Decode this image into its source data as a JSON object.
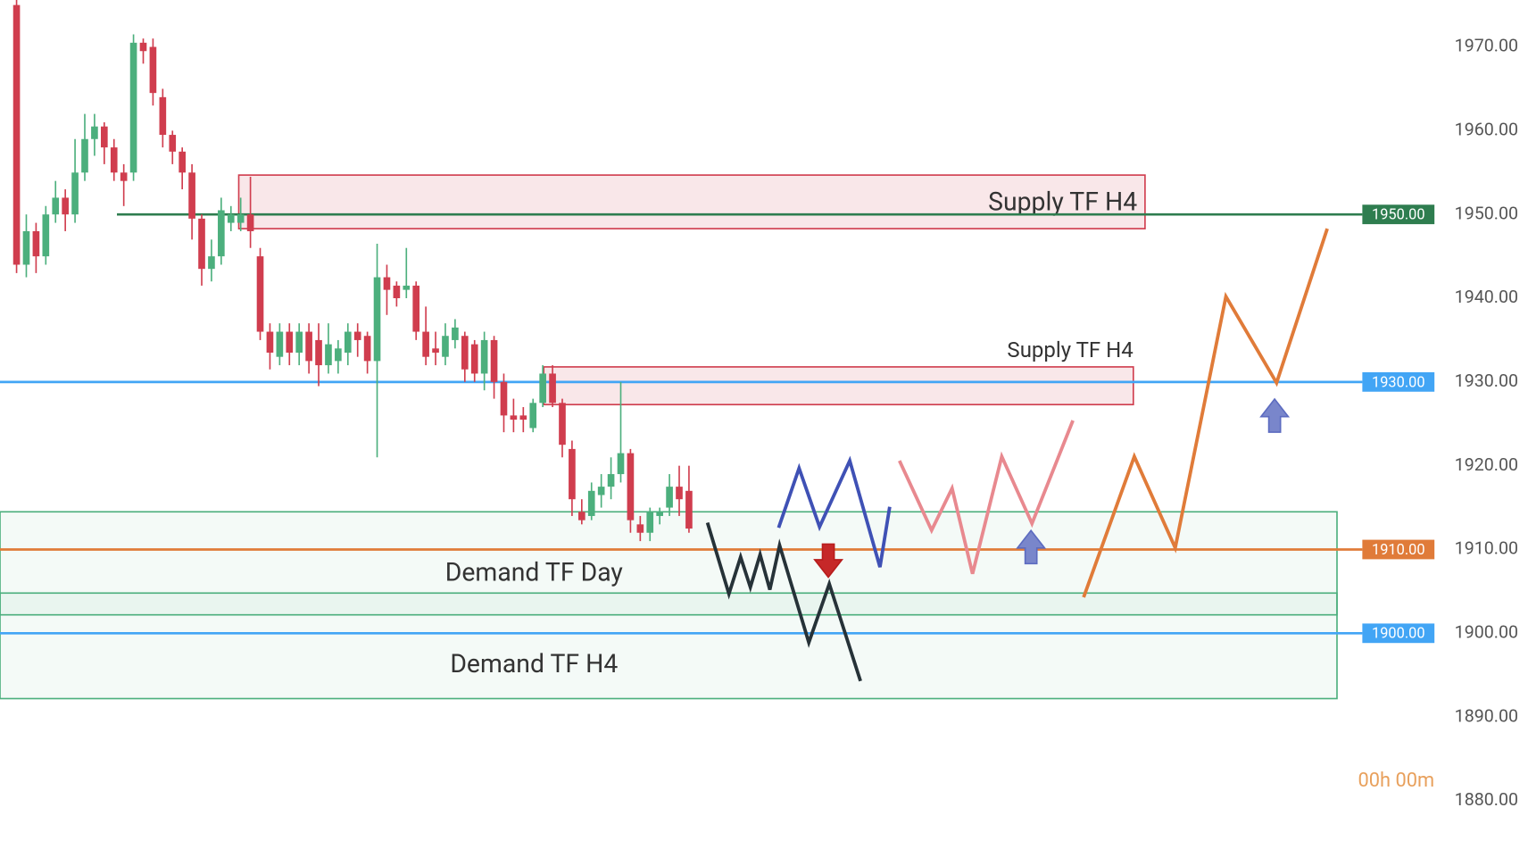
{
  "chart_data": {
    "type": "candlestick",
    "up_color": "#4caf7d",
    "down_color": "#d03d4e",
    "ylim": [
      1875.2,
      1975.6
    ],
    "yticks": [
      {
        "value": 1880,
        "label": "1880.00"
      },
      {
        "value": 1890,
        "label": "1890.00"
      },
      {
        "value": 1900,
        "label": "1900.00"
      },
      {
        "value": 1910,
        "label": "1910.00"
      },
      {
        "value": 1920,
        "label": "1920.00"
      },
      {
        "value": 1930,
        "label": "1930.00"
      },
      {
        "value": 1940,
        "label": "1940.00"
      },
      {
        "value": 1950,
        "label": "1950.00"
      },
      {
        "value": 1960,
        "label": "1960.00"
      },
      {
        "value": 1970,
        "label": "1970.00"
      }
    ],
    "open": [
      1975,
      1944,
      1948,
      1945,
      1950,
      1952,
      1950,
      1955,
      1959,
      1960.5,
      1958,
      1955,
      1955,
      1970.5,
      1970,
      1964,
      1959.5,
      1957.5,
      1955,
      1949.5,
      1943.5,
      1945,
      1949,
      1949,
      1950,
      1945,
      1936,
      1933,
      1936,
      1933.5,
      1936,
      1935,
      1932,
      1932.5,
      1933.5,
      1936,
      1935.5,
      1932.5,
      1942.5,
      1941.5,
      1941,
      1941.5,
      1936,
      1934,
      1933,
      1935,
      1935.5,
      1934.5,
      1931,
      1935,
      1930,
      1926,
      1926,
      1924.5,
      1927.5,
      1931,
      1927.5,
      1922,
      1914.5,
      1914,
      1916.5,
      1917.5,
      1919,
      1921.5,
      1913,
      1912,
      1914,
      1915,
      1917.5,
      1917
    ],
    "high": [
      1976,
      1950,
      1949,
      1951,
      1954,
      1953,
      1959,
      1962,
      1962,
      1961,
      1959,
      1956,
      1971.5,
      1971,
      1971,
      1965,
      1960,
      1958,
      1956,
      1950,
      1947,
      1952,
      1951,
      1952,
      1954.5,
      1946,
      1937,
      1937,
      1937,
      1937,
      1937,
      1937,
      1937,
      1935,
      1937,
      1937,
      1936,
      1946.5,
      1944,
      1942,
      1946,
      1942,
      1939,
      1936,
      1937,
      1937.5,
      1936,
      1935,
      1936,
      1935.5,
      1931,
      1928,
      1927,
      1928,
      1932,
      1932,
      1928,
      1923,
      1916,
      1918,
      1919,
      1921,
      1930,
      1922,
      1914,
      1915,
      1915,
      1919,
      1920,
      1920
    ],
    "low": [
      1943,
      1942.5,
      1943,
      1944,
      1949,
      1948,
      1949,
      1954,
      1957,
      1956,
      1954,
      1951,
      1954,
      1968,
      1963,
      1958,
      1956,
      1953,
      1947,
      1941.5,
      1942,
      1944,
      1948,
      1948,
      1946,
      1935,
      1931.5,
      1932,
      1932,
      1932,
      1931,
      1929.5,
      1931,
      1931,
      1932,
      1933,
      1931,
      1921,
      1938,
      1939,
      1940,
      1935,
      1932,
      1932,
      1932,
      1934,
      1930,
      1930,
      1929,
      1928,
      1924,
      1924,
      1924,
      1924,
      1927,
      1927,
      1921,
      1914,
      1913,
      1913.5,
      1915,
      1916,
      1918,
      1912,
      1911,
      1911,
      1913,
      1914,
      1914,
      1912
    ],
    "close": [
      1944,
      1948,
      1945,
      1950,
      1952,
      1950,
      1955,
      1959,
      1960.5,
      1958,
      1955,
      1954,
      1970.5,
      1969.5,
      1964.5,
      1959.5,
      1957.5,
      1955,
      1949.5,
      1943.5,
      1945,
      1950.5,
      1950,
      1950,
      1948,
      1936,
      1933.5,
      1936,
      1933.5,
      1936,
      1932.5,
      1932,
      1934.5,
      1934,
      1936,
      1935,
      1932.5,
      1942.5,
      1941,
      1940,
      1941.5,
      1936,
      1933,
      1933.5,
      1935.5,
      1936.5,
      1931.5,
      1931,
      1935,
      1930,
      1926,
      1925.5,
      1925.5,
      1927.5,
      1931,
      1927.5,
      1922.5,
      1916,
      1913.5,
      1917,
      1917.5,
      1919,
      1921.5,
      1913.5,
      1912,
      1914.5,
      1914.5,
      1917.5,
      1916,
      1912.5
    ],
    "levels": [
      {
        "value": 1950,
        "label": "1950.00",
        "color": "#2e7d4f"
      },
      {
        "value": 1930,
        "label": "1930.00",
        "color": "#42a5f5"
      },
      {
        "value": 1910,
        "label": "1910.00",
        "color": "#e07b39"
      },
      {
        "value": 1900,
        "label": "1900.00",
        "color": "#42a5f5"
      }
    ],
    "zones": [
      {
        "label": "Supply TF H4",
        "top": 1954.7,
        "bottom": 1948.3,
        "color": "#d03d4e"
      },
      {
        "label": "Supply TF H4",
        "top": 1931.8,
        "bottom": 1927.3,
        "color": "#d03d4e"
      },
      {
        "label": "Demand TF Day",
        "top": 1914.5,
        "bottom": 1902.2,
        "color": "#4caf7d"
      },
      {
        "label": "Demand TF H4",
        "top": 1904.8,
        "bottom": 1892.2,
        "color": "#4caf7d"
      }
    ],
    "projections": [
      {
        "color": "#263238",
        "values": [
          1913.2,
          1904.7,
          1909.1,
          1905.5,
          1909.4,
          1905.2,
          1910.5,
          1898.9,
          1905.9,
          1894.3
        ]
      },
      {
        "color": "#3f51b5",
        "values": [
          1912.6,
          1919.7,
          1912.7,
          1920.6,
          1907.9,
          1915.1
        ]
      },
      {
        "color": "#e8898f",
        "values": [
          1920.6,
          1912.3,
          1917.3,
          1907.1,
          1921.1,
          1913.1,
          1925.4
        ]
      },
      {
        "color": "#e07b39",
        "values": [
          1904.3,
          1921.1,
          1910.2,
          1940.2,
          1929.9,
          1948.3
        ]
      }
    ],
    "timer": "00h 00m"
  }
}
